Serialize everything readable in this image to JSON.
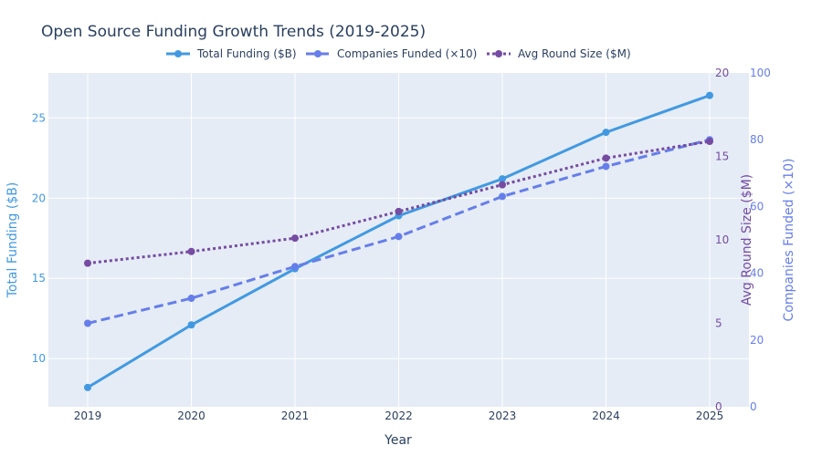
{
  "chart_data": {
    "type": "line",
    "title": "Open Source Funding Growth Trends (2019-2025)",
    "xlabel": "Year",
    "x": [
      "2019",
      "2020",
      "2021",
      "2022",
      "2023",
      "2024",
      "2025"
    ],
    "series": [
      {
        "name": "Total Funding ($B)",
        "axis": "y",
        "style": "solid",
        "color": "#4299e1",
        "values": [
          8.2,
          12.1,
          15.6,
          18.9,
          21.2,
          24.1,
          26.4
        ]
      },
      {
        "name": "Companies Funded (×10)",
        "axis": "y3",
        "style": "dashed",
        "color": "#667eea",
        "values": [
          25,
          32.5,
          42,
          51,
          63,
          72,
          80
        ]
      },
      {
        "name": "Avg Round Size ($M)",
        "axis": "y2",
        "style": "dotted",
        "color": "#764ba2",
        "values": [
          8.6,
          9.3,
          10.1,
          11.7,
          13.3,
          14.9,
          15.9
        ]
      }
    ],
    "axes": {
      "y": {
        "label": "Total Funding ($B)",
        "range": [
          7,
          27.8
        ],
        "ticks": [
          10,
          15,
          20,
          25
        ],
        "color": "#4299e1"
      },
      "y2": {
        "label": "Avg Round Size ($M)",
        "range": [
          0,
          20
        ],
        "ticks": [
          0,
          5,
          10,
          15,
          20
        ],
        "color": "#764ba2"
      },
      "y3": {
        "label": "Companies Funded (×10)",
        "range": [
          0,
          100
        ],
        "ticks": [
          0,
          20,
          40,
          60,
          80,
          100
        ],
        "color": "#667eea"
      }
    },
    "grid": true,
    "legend": "top-center",
    "colors": {
      "plot_bg": "#e5ecf6",
      "grid": "#ffffff",
      "text": "#2a3f5f"
    }
  }
}
